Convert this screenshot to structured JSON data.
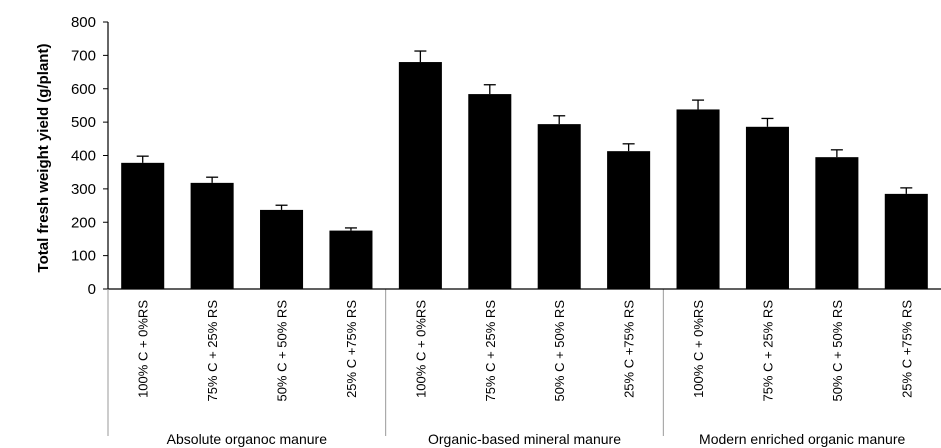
{
  "chart_data": {
    "type": "bar",
    "ylabel": "Total fresh weight yield (g/plant)",
    "xlabel": "",
    "ylim": [
      0,
      800
    ],
    "yticks": [
      0,
      100,
      200,
      300,
      400,
      500,
      600,
      700,
      800
    ],
    "grid": false,
    "legend": "none",
    "bar_color": "#000000",
    "groups": [
      {
        "label": "Absolute organoc manure",
        "categories": [
          "100% C + 0%RS",
          "75% C + 25% RS",
          "50% C + 50% RS",
          "25% C +75% RS"
        ],
        "values": [
          378,
          318,
          237,
          175
        ],
        "errors": [
          20,
          17,
          14,
          8
        ]
      },
      {
        "label": "Organic-based mineral manure",
        "categories": [
          "100% C + 0%RS",
          "75% C + 25% RS",
          "50% C + 50% RS",
          "25% C +75% RS"
        ],
        "values": [
          680,
          584,
          494,
          413
        ],
        "errors": [
          33,
          28,
          25,
          22
        ]
      },
      {
        "label": "Modern enriched organic manure",
        "categories": [
          "100% C + 0%RS",
          "75% C + 25% RS",
          "50% C + 50% RS",
          "25% C +75% RS"
        ],
        "values": [
          538,
          486,
          395,
          285
        ],
        "errors": [
          28,
          25,
          22,
          18
        ]
      }
    ]
  }
}
